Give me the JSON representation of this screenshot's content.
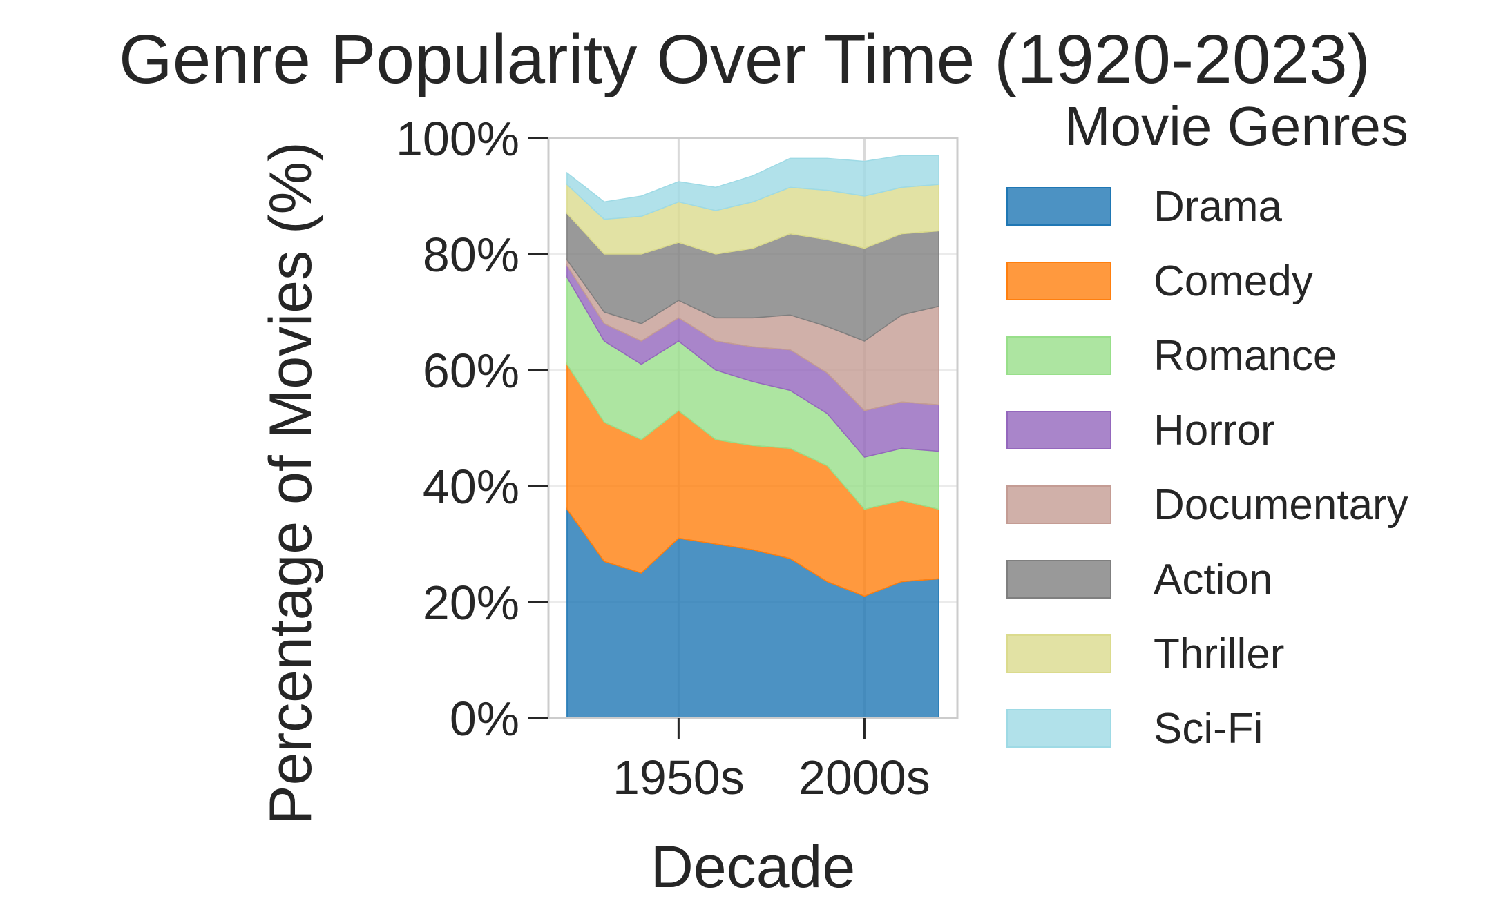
{
  "chart_data": {
    "type": "area",
    "stacked": true,
    "title": "Genre Popularity Over Time (1920-2023)",
    "xlabel": "Decade",
    "ylabel": "Percentage of Movies (%)",
    "x": [
      1920,
      1930,
      1940,
      1950,
      1960,
      1970,
      1980,
      1990,
      2000,
      2010,
      2020
    ],
    "xlim": [
      1915,
      2025
    ],
    "xticks": [
      1950,
      2000
    ],
    "xtick_labels": [
      "1950s",
      "2000s"
    ],
    "ylim": [
      0,
      100
    ],
    "yticks": [
      0,
      20,
      40,
      60,
      80,
      100
    ],
    "ytick_labels": [
      "0%",
      "20%",
      "40%",
      "60%",
      "80%",
      "100%"
    ],
    "grid": true,
    "legend_title": "Movie Genres",
    "legend_position": "outside right",
    "series": [
      {
        "name": "Drama",
        "color": "#1f77b4",
        "values": [
          36,
          27,
          25,
          31,
          30,
          29,
          27.5,
          23.5,
          21,
          23.5,
          24
        ]
      },
      {
        "name": "Comedy",
        "color": "#ff7f0e",
        "values": [
          25,
          24,
          23,
          22,
          18,
          18,
          19,
          20,
          15,
          14,
          12
        ]
      },
      {
        "name": "Romance",
        "color": "#98df8a",
        "values": [
          15,
          14,
          13,
          12,
          12,
          11,
          10,
          9,
          9,
          9,
          10
        ]
      },
      {
        "name": "Horror",
        "color": "#9467bd",
        "values": [
          2,
          3,
          4,
          4,
          5,
          6,
          7,
          7,
          8,
          8,
          8
        ]
      },
      {
        "name": "Documentary",
        "color": "#c49c94",
        "values": [
          1,
          2,
          3,
          3,
          4,
          5,
          6,
          8,
          12,
          15,
          17
        ]
      },
      {
        "name": "Action",
        "color": "#7f7f7f",
        "values": [
          8,
          10,
          12,
          10,
          11,
          12,
          14,
          15,
          16,
          14,
          13
        ]
      },
      {
        "name": "Thriller",
        "color": "#dbdb8d",
        "values": [
          5,
          6,
          6.5,
          7,
          7.5,
          8,
          8,
          8.5,
          9,
          8,
          8
        ]
      },
      {
        "name": "Sci-Fi",
        "color": "#9edae5",
        "values": [
          2,
          3,
          3.5,
          3.5,
          4,
          4.5,
          5,
          5.5,
          6,
          5.5,
          5
        ]
      }
    ]
  }
}
